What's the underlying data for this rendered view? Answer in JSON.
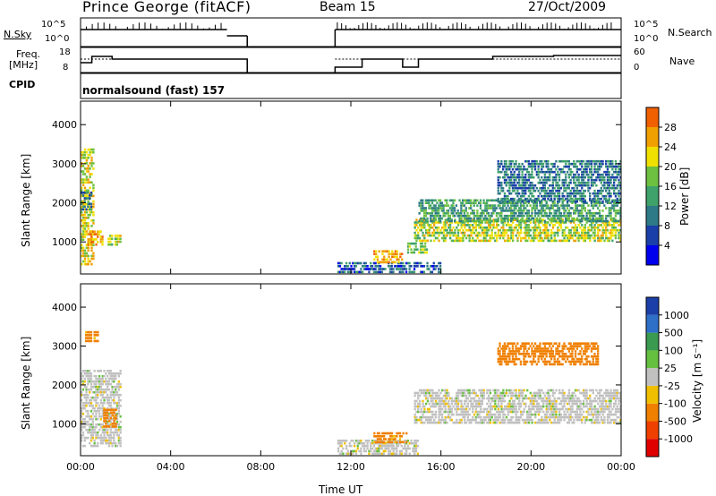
{
  "header": {
    "station": "Prince George (fitACF)",
    "beam": "Beam 15",
    "date": "27/Oct/2009"
  },
  "panels": {
    "nsky_label": "N.Sky",
    "nsky_ticks": [
      "10^5",
      "10^0"
    ],
    "nsearch_label": "N.Search",
    "nsearch_ticks": [
      "10^5",
      "10^0"
    ],
    "freq_label_1": "Freq.",
    "freq_label_2": "[MHz]",
    "freq_ticks": [
      "18",
      "8"
    ],
    "nave_label": "Nave",
    "nave_ticks": [
      "60",
      "0"
    ],
    "cpid_label": "CPID",
    "cpid_text": "normalsound (fast) 157"
  },
  "colors": {
    "power": [
      "#0000ee",
      "#1a3fa8",
      "#2e7a86",
      "#3fa26a",
      "#6ec040",
      "#f0e000",
      "#f0a000",
      "#f06000",
      "#e02000"
    ],
    "velocity": [
      "#1a3fa8",
      "#2e6fc8",
      "#3a9a50",
      "#66c040",
      "#c0c0c0",
      "#f0c000",
      "#f08000",
      "#f04000",
      "#e00000"
    ]
  },
  "chart_data": [
    {
      "type": "heatmap",
      "title": "",
      "xlabel": "Time UT",
      "ylabel": "Slant Range [km]",
      "x_ticks": [
        "00:00",
        "04:00",
        "08:00",
        "12:00",
        "16:00",
        "20:00",
        "00:00"
      ],
      "y_ticks": [
        1000,
        2000,
        3000,
        4000
      ],
      "xlim_hours": [
        0,
        24
      ],
      "ylim_km": [
        180,
        4600
      ],
      "colorbar": {
        "label": "Power [dB]",
        "ticks": [
          "4",
          "8",
          "12",
          "16",
          "20",
          "24",
          "28"
        ],
        "range": [
          0,
          30
        ]
      },
      "data_gap_hours": [
        7.4,
        11.3
      ],
      "echo_regions": [
        {
          "t": [
            0.0,
            0.6
          ],
          "r": [
            400,
            3400
          ],
          "value": 22
        },
        {
          "t": [
            0.3,
            1.0
          ],
          "r": [
            900,
            1300
          ],
          "value": 26
        },
        {
          "t": [
            1.2,
            1.8
          ],
          "r": [
            900,
            1200
          ],
          "value": 20
        },
        {
          "t": [
            0.0,
            0.5
          ],
          "r": [
            1800,
            2300
          ],
          "value": 10
        },
        {
          "t": [
            11.4,
            16.0
          ],
          "r": [
            200,
            500
          ],
          "value": 8
        },
        {
          "t": [
            13.0,
            14.3
          ],
          "r": [
            450,
            800
          ],
          "value": 26
        },
        {
          "t": [
            14.5,
            15.4
          ],
          "r": [
            700,
            1000
          ],
          "value": 18
        },
        {
          "t": [
            14.8,
            24.0
          ],
          "r": [
            1000,
            1600
          ],
          "value": 20
        },
        {
          "t": [
            15.0,
            24.0
          ],
          "r": [
            1500,
            2100
          ],
          "value": 14
        },
        {
          "t": [
            18.5,
            24.0
          ],
          "r": [
            2000,
            3100
          ],
          "value": 10
        }
      ]
    },
    {
      "type": "heatmap",
      "title": "",
      "xlabel": "Time UT",
      "ylabel": "Slant Range [km]",
      "x_ticks": [
        "00:00",
        "04:00",
        "08:00",
        "12:00",
        "16:00",
        "20:00",
        "00:00"
      ],
      "y_ticks": [
        1000,
        2000,
        3000,
        4000
      ],
      "xlim_hours": [
        0,
        24
      ],
      "ylim_km": [
        180,
        4600
      ],
      "colorbar": {
        "label": "Velocity [m s⁻¹]",
        "ticks": [
          "1000",
          "500",
          "100",
          "25",
          "-25",
          "-100",
          "-500",
          "-1000"
        ]
      },
      "data_gap_hours": [
        7.4,
        11.3
      ],
      "echo_regions": [
        {
          "t": [
            0.0,
            1.8
          ],
          "r": [
            400,
            2400
          ],
          "value": 0
        },
        {
          "t": [
            0.2,
            0.8
          ],
          "r": [
            3100,
            3400
          ],
          "value": -120
        },
        {
          "t": [
            1.0,
            1.6
          ],
          "r": [
            900,
            1400
          ],
          "value": -150
        },
        {
          "t": [
            11.4,
            15.0
          ],
          "r": [
            200,
            600
          ],
          "value": 0
        },
        {
          "t": [
            13.0,
            14.5
          ],
          "r": [
            500,
            800
          ],
          "value": -120
        },
        {
          "t": [
            14.8,
            24.0
          ],
          "r": [
            1000,
            1900
          ],
          "value": 0
        },
        {
          "t": [
            18.5,
            23.0
          ],
          "r": [
            2500,
            3100
          ],
          "value": -300
        }
      ]
    }
  ]
}
